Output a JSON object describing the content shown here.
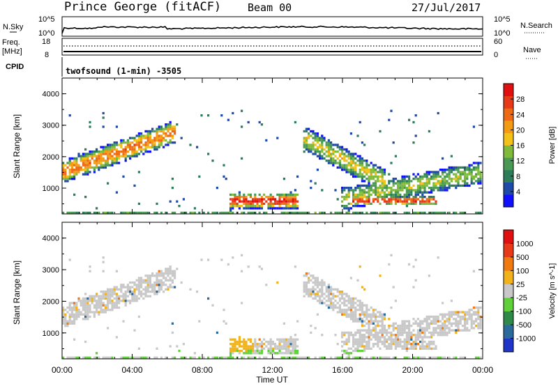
{
  "header": {
    "station": "Prince George (fitACF)",
    "beam": "Beam 00",
    "date": "27/Jul/2017"
  },
  "top_panel": {
    "left_label": "N.Sky",
    "right_label": "N.Search",
    "left_ticks": [
      "10^5",
      "10^0"
    ],
    "right_ticks": [
      "10^5",
      "10^0"
    ]
  },
  "freq_panel": {
    "left_label_1": "Freq.",
    "left_label_2": "[MHz]",
    "right_label": "Nave",
    "left_ticks": [
      "18",
      "8"
    ],
    "right_ticks": [
      "60",
      "0"
    ]
  },
  "cpid": {
    "label": "CPID",
    "text": "twofsound (1-min) -3505"
  },
  "chart_data": [
    {
      "type": "heatmap",
      "name": "Power",
      "ylabel": "Slant Range [km]",
      "xlabel": "Time UT",
      "colorbar_label": "Power [dB]",
      "colorbar_ticks": [
        "28",
        "24",
        "20",
        "16",
        "12",
        "8",
        "4"
      ],
      "colors": [
        "#1010ff",
        "#1f4aa8",
        "#2e7d5a",
        "#4a9a55",
        "#7fba3a",
        "#f2c21a",
        "#f39b12",
        "#ee6a14",
        "#e83a18",
        "#e01010"
      ],
      "yticks": [
        "4000",
        "3000",
        "2000",
        "1000"
      ],
      "xticks": [
        "00:00",
        "04:00",
        "08:00",
        "12:00",
        "16:00",
        "20:00",
        "00:00"
      ],
      "x_range_hours": [
        0,
        24
      ],
      "y_range_km": [
        180,
        4500
      ],
      "regions": [
        {
          "t0": 0.0,
          "t1": 6.5,
          "r_start": 1500,
          "r_end": 2800,
          "width": 650,
          "peak": 22
        },
        {
          "t0": 0.0,
          "t1": 24.0,
          "r_start": 220,
          "r_end": 220,
          "width": 120,
          "peak": 10
        },
        {
          "t0": 9.6,
          "t1": 13.5,
          "r_start": 600,
          "r_end": 600,
          "width": 450,
          "peak": 27
        },
        {
          "t0": 13.8,
          "t1": 18.5,
          "r_start": 2600,
          "r_end": 1200,
          "width": 700,
          "peak": 16
        },
        {
          "t0": 16.0,
          "t1": 24.0,
          "r_start": 650,
          "r_end": 1500,
          "width": 650,
          "peak": 14
        },
        {
          "t0": 16.5,
          "t1": 21.5,
          "r_start": 600,
          "r_end": 600,
          "width": 250,
          "peak": 26
        }
      ]
    },
    {
      "type": "heatmap",
      "name": "Velocity",
      "ylabel": "Slant Range [km]",
      "xlabel": "Time UT",
      "colorbar_label": "Velocity [m s^-1]",
      "colorbar_ticks": [
        "1000",
        "500",
        "100",
        "25",
        "-25",
        "-100",
        "-500",
        "-1000"
      ],
      "colors": [
        "#1f35c8",
        "#2c6a9c",
        "#2f8a4a",
        "#5fcf3a",
        "#c8c8c8",
        "#f1b21c",
        "#f07a10",
        "#e83a18",
        "#e01010"
      ],
      "yticks": [
        "4000",
        "3000",
        "2000",
        "1000"
      ],
      "xticks": [
        "00:00",
        "04:00",
        "08:00",
        "12:00",
        "16:00",
        "20:00",
        "00:00"
      ],
      "x_range_hours": [
        0,
        24
      ],
      "y_range_km": [
        180,
        4500
      ]
    }
  ]
}
